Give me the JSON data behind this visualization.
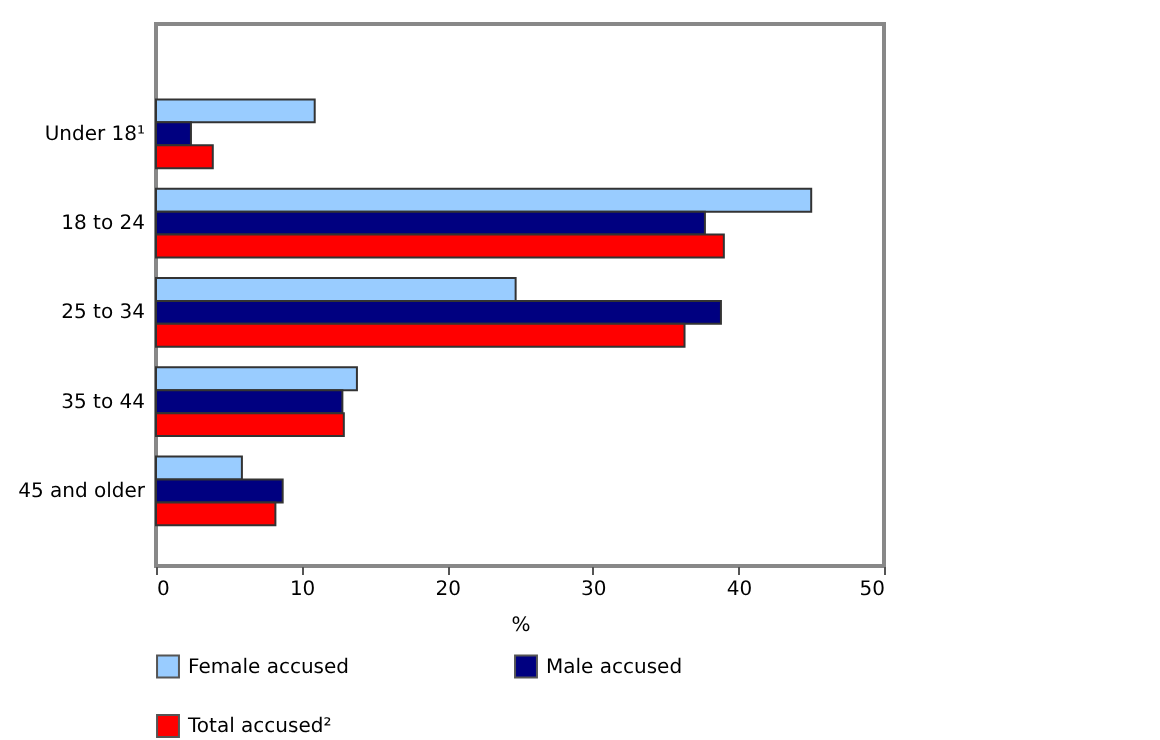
{
  "chart_data": {
    "type": "bar",
    "orientation": "horizontal",
    "xlabel": "%",
    "categories": [
      "Under 18¹",
      "18 to 24",
      "25 to 34",
      "35 to 44",
      "45 and older"
    ],
    "series": [
      {
        "name": "Female accused",
        "color": "#99ccff",
        "values": [
          10.9,
          45.0,
          24.7,
          13.8,
          5.9
        ]
      },
      {
        "name": "Male accused",
        "color": "#000080",
        "values": [
          2.4,
          37.7,
          38.8,
          12.8,
          8.7
        ]
      },
      {
        "name": "Total accused²",
        "color": "#ff0000",
        "values": [
          3.9,
          39.0,
          36.3,
          12.9,
          8.2
        ]
      }
    ],
    "xlim": [
      0,
      50
    ],
    "xticks": [
      0,
      10,
      20,
      30,
      40,
      50
    ],
    "grid": false,
    "legend": "bottom"
  }
}
